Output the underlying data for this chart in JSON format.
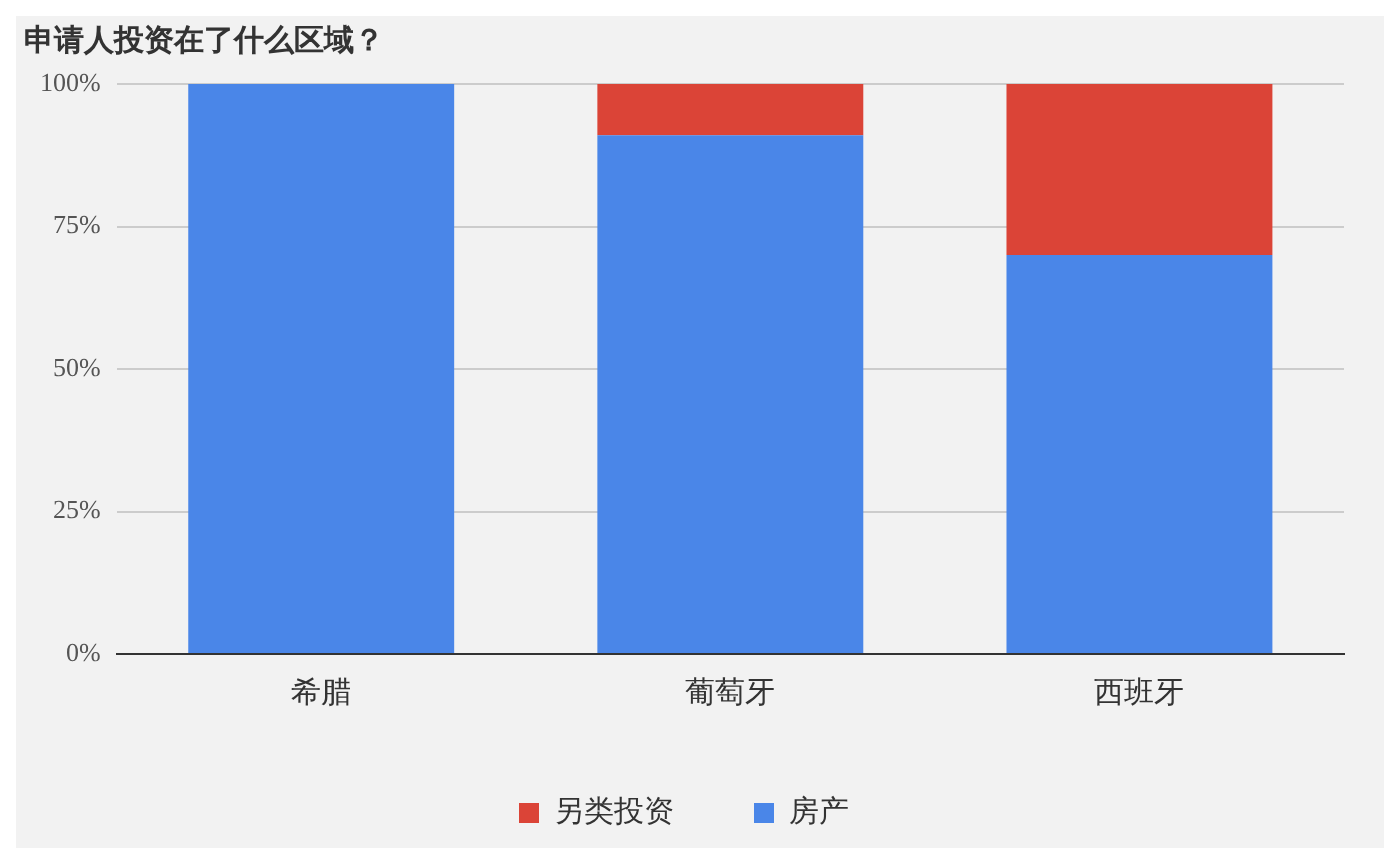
{
  "chart_data": {
    "type": "bar",
    "title": "申请人投资在了什么区域？",
    "categories": [
      "希腊",
      "葡萄牙",
      "西班牙"
    ],
    "stacked": true,
    "series": [
      {
        "name": "房产",
        "color": "#4a86e8",
        "values": [
          100,
          91,
          70
        ]
      },
      {
        "name": "另类投资",
        "color": "#db4437",
        "values": [
          0,
          9,
          30
        ]
      }
    ],
    "ylim": [
      0,
      100
    ],
    "yticks": [
      {
        "value": 0,
        "label": "0%"
      },
      {
        "value": 25,
        "label": "25%"
      },
      {
        "value": 50,
        "label": "50%"
      },
      {
        "value": 75,
        "label": "75%"
      },
      {
        "value": 100,
        "label": "100%"
      }
    ],
    "grid": "y",
    "legend": "bottom"
  }
}
